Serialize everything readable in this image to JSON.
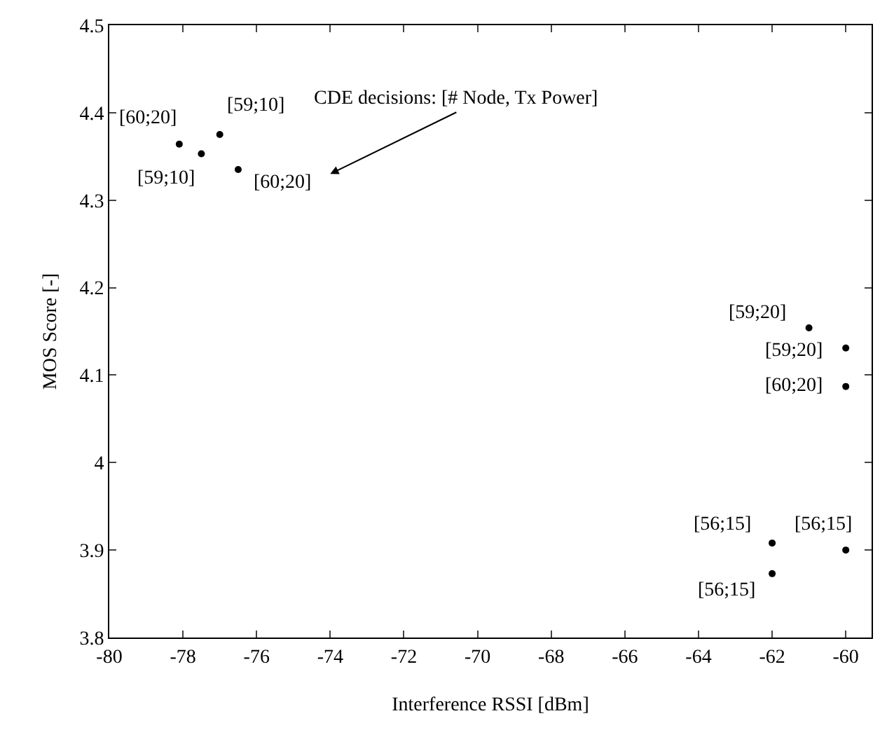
{
  "chart_data": {
    "type": "scatter",
    "xlabel": "Interference RSSI [dBm]",
    "ylabel": "MOS Score [-]",
    "x": [
      -78.1,
      -77.5,
      -77.0,
      -76.5,
      -61.0,
      -60.0,
      -60.0,
      -62.0,
      -62.0,
      -60.0
    ],
    "values": [
      4.364,
      4.353,
      4.375,
      4.335,
      4.154,
      4.131,
      4.087,
      3.908,
      3.873,
      3.9
    ],
    "color": "#000000",
    "marker": "circle",
    "xlim": [
      -80,
      -59.3
    ],
    "xticks": [
      -80,
      -78,
      -76,
      -74,
      -72,
      -70,
      -68,
      -66,
      -64,
      -62,
      -60
    ],
    "ylim": [
      3.8,
      4.5
    ],
    "yticks": [
      3.8,
      3.9,
      {
        "value": 4,
        "label": "4"
      },
      4.1,
      4.2,
      4.3,
      4.4,
      4.5
    ],
    "annotations": [
      "CDE decisions: [# Node, Tx Power]",
      {
        "text": "[60;20]",
        "x": -78.1,
        "y": 4.364
      },
      {
        "text": "[59;10]",
        "x": -77.5,
        "y": 4.353
      },
      {
        "text": "[59;10]",
        "x": -77.0,
        "y": 4.375
      },
      {
        "text": "[60;20]",
        "x": -76.5,
        "y": 4.335
      },
      {
        "text": "[59;20]",
        "x": -61.0,
        "y": 4.154
      },
      {
        "text": "[59;20]",
        "x": -60.0,
        "y": 4.131
      },
      {
        "text": "[60;20]",
        "x": -60.0,
        "y": 4.087
      },
      {
        "text": "[56;15]",
        "x": -62.0,
        "y": 3.908
      },
      {
        "text": "[56;15]",
        "x": -62.0,
        "y": 3.873
      },
      {
        "text": "[56;15]",
        "x": -60.0,
        "y": 3.9
      }
    ]
  }
}
